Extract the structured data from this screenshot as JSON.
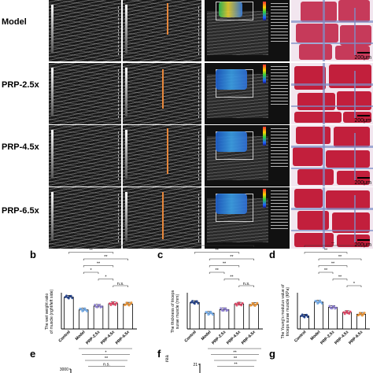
{
  "rows": [
    {
      "label": "Model"
    },
    {
      "label": "PRP-2.5x"
    },
    {
      "label": "PRP-4.5x"
    },
    {
      "label": "PRP-6.5x"
    }
  ],
  "histo_scale": [
    "200μm",
    "200μm",
    "200μm",
    "200μm"
  ],
  "panels": {
    "b": {
      "letter": "b",
      "ylabel": "The wet weight ratio of muscle (right/left side)",
      "categories": [
        "Control",
        "Model",
        "PRP-2.5x",
        "PRP-4.5x",
        "PRP-6.5x"
      ],
      "values": [
        0.92,
        0.55,
        0.66,
        0.73,
        0.72
      ],
      "ylim": [
        0,
        1.0
      ],
      "sig": [
        {
          "from": 0,
          "to": 4,
          "text": "**"
        },
        {
          "from": 0,
          "to": 3,
          "text": "**"
        },
        {
          "from": 1,
          "to": 4,
          "text": "**"
        },
        {
          "from": 1,
          "to": 3,
          "text": "**"
        },
        {
          "from": 1,
          "to": 2,
          "text": "*"
        },
        {
          "from": 2,
          "to": 3,
          "text": "*"
        },
        {
          "from": 3,
          "to": 4,
          "text": "n.s."
        }
      ]
    },
    "c": {
      "letter": "c",
      "ylabel": "The thickness of triceps surae muscle (mm)",
      "categories": [
        "Control",
        "Model",
        "PRP-2.5x",
        "PRP-4.5x",
        "PRP-6.5x"
      ],
      "values": [
        11.5,
        6.8,
        8.4,
        10.8,
        10.6
      ],
      "ylim": [
        0,
        15
      ],
      "sig": [
        {
          "from": 0,
          "to": 4,
          "text": "**"
        },
        {
          "from": 0,
          "to": 3,
          "text": "**"
        },
        {
          "from": 1,
          "to": 4,
          "text": "**"
        },
        {
          "from": 1,
          "to": 3,
          "text": "**"
        },
        {
          "from": 1,
          "to": 2,
          "text": "**"
        },
        {
          "from": 2,
          "to": 3,
          "text": "**"
        },
        {
          "from": 3,
          "to": 4,
          "text": "n.s."
        }
      ]
    },
    "d": {
      "letter": "d",
      "ylabel": "The Young's modulus value of triceps surae muscle (KPa)",
      "categories": [
        "Control",
        "Model",
        "PRP-2.5x",
        "PRP-4.5x",
        "PRP-6.5x"
      ],
      "values": [
        15,
        31,
        25,
        19,
        17
      ],
      "ylim": [
        0,
        40
      ],
      "sig": [
        {
          "from": 0,
          "to": 4,
          "text": "**"
        },
        {
          "from": 0,
          "to": 3,
          "text": "**"
        },
        {
          "from": 1,
          "to": 4,
          "text": "**"
        },
        {
          "from": 1,
          "to": 3,
          "text": "**"
        },
        {
          "from": 1,
          "to": 2,
          "text": "**"
        },
        {
          "from": 2,
          "to": 3,
          "text": "**"
        },
        {
          "from": 3,
          "to": 4,
          "text": "*"
        }
      ]
    },
    "e": {
      "letter": "e",
      "ytick": "3000",
      "sig": [
        "**",
        "*",
        "**",
        "n.s."
      ]
    },
    "f": {
      "letter": "f",
      "ytick": "21",
      "ylabel_fragment": "rea",
      "sig": [
        "**",
        "**",
        "**",
        "**"
      ]
    },
    "g": {
      "letter": "g"
    }
  }
}
